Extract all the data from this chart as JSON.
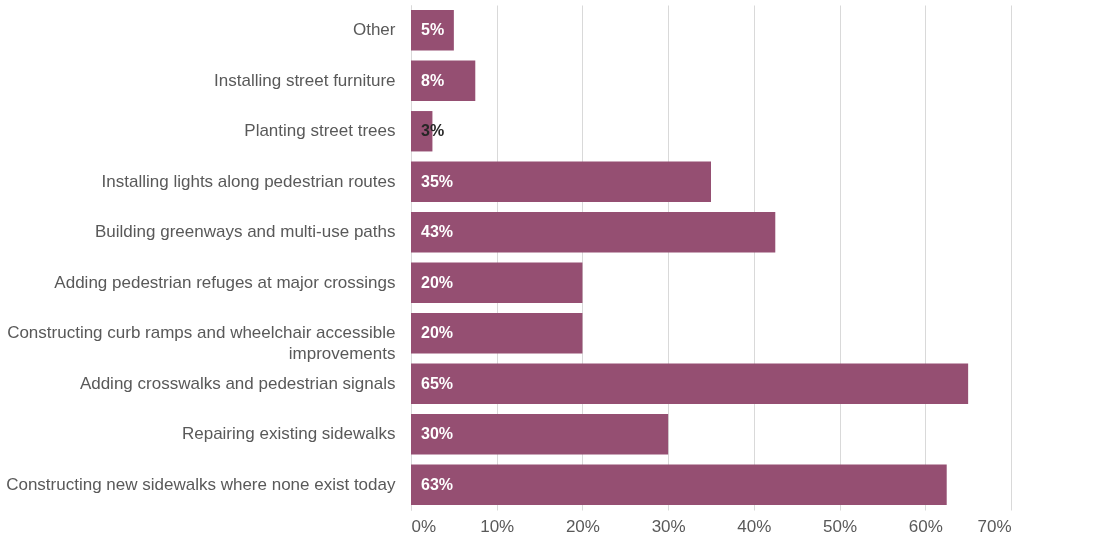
{
  "chart_data": {
    "type": "bar",
    "orientation": "horizontal",
    "categories": [
      "Other",
      "Installing street furniture",
      "Planting street trees",
      "Installing lights along pedestrian routes",
      "Building greenways and multi-use paths",
      "Adding pedestrian refuges at major crossings",
      "Constructing curb ramps and wheelchair accessible improvements",
      "Adding crosswalks and pedestrian signals",
      "Repairing existing sidewalks",
      "Constructing new sidewalks where none exist today"
    ],
    "values": [
      5,
      7.5,
      2.5,
      35,
      42.5,
      20,
      20,
      65,
      30,
      62.5
    ],
    "value_labels": [
      "5%",
      "8%",
      "3%",
      "35%",
      "43%",
      "20%",
      "20%",
      "65%",
      "30%",
      "63%"
    ],
    "color": "#954f72",
    "xlim": [
      0,
      70
    ],
    "xticks": [
      {
        "value": 0,
        "label": "0%"
      },
      {
        "value": 10,
        "label": "10%"
      },
      {
        "value": 20,
        "label": "20%"
      },
      {
        "value": 30,
        "label": "30%"
      },
      {
        "value": 40,
        "label": "40%"
      },
      {
        "value": 50,
        "label": "50%"
      },
      {
        "value": 60,
        "label": "60%"
      },
      {
        "value": 70,
        "label": "70%"
      }
    ],
    "grid": "x"
  }
}
